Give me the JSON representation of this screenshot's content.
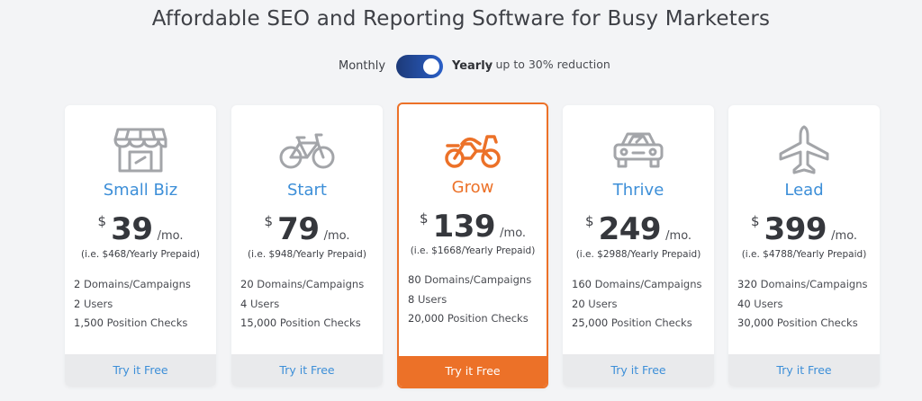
{
  "headline": "Affordable SEO and Reporting Software for Busy Marketers",
  "billing": {
    "monthly_label": "Monthly",
    "yearly_label": "Yearly",
    "reduction_note": "- up to 30% reduction",
    "selected": "yearly"
  },
  "colors": {
    "accent_blue": "#3d8fd8",
    "accent_orange": "#ec7128",
    "toggle": "#1d3a78"
  },
  "plans": [
    {
      "icon": "storefront-icon",
      "name": "Small Biz",
      "currency": "$",
      "price": "39",
      "per": "/mo.",
      "prepaid": "(i.e. $468/Yearly Prepaid)",
      "features": [
        {
          "count": "2",
          "label": " Domains/Campaigns"
        },
        {
          "count": "2",
          "label": " Users"
        },
        {
          "count": "1,500",
          "label": " Position Checks"
        }
      ],
      "cta": "Try it Free"
    },
    {
      "icon": "bicycle-icon",
      "name": "Start",
      "currency": "$",
      "price": "79",
      "per": "/mo.",
      "prepaid": "(i.e. $948/Yearly Prepaid)",
      "features": [
        {
          "count": "20",
          "label": " Domains/Campaigns"
        },
        {
          "count": "4",
          "label": " Users"
        },
        {
          "count": "15,000",
          "label": " Position Checks"
        }
      ],
      "cta": "Try it Free"
    },
    {
      "icon": "motorcycle-icon",
      "name": "Grow",
      "currency": "$",
      "price": "139",
      "per": "/mo.",
      "prepaid": "(i.e. $1668/Yearly Prepaid)",
      "features": [
        {
          "count": "80",
          "label": " Domains/Campaigns"
        },
        {
          "count": "8",
          "label": " Users"
        },
        {
          "count": "20,000",
          "label": " Position Checks"
        }
      ],
      "cta": "Try it Free",
      "featured": true
    },
    {
      "icon": "car-icon",
      "name": "Thrive",
      "currency": "$",
      "price": "249",
      "per": "/mo.",
      "prepaid": "(i.e. $2988/Yearly Prepaid)",
      "features": [
        {
          "count": "160",
          "label": " Domains/Campaigns"
        },
        {
          "count": "20",
          "label": " Users"
        },
        {
          "count": "25,000",
          "label": " Position Checks"
        }
      ],
      "cta": "Try it Free"
    },
    {
      "icon": "airplane-icon",
      "name": "Lead",
      "currency": "$",
      "price": "399",
      "per": "/mo.",
      "prepaid": "(i.e. $4788/Yearly Prepaid)",
      "features": [
        {
          "count": "320",
          "label": " Domains/Campaigns"
        },
        {
          "count": "40",
          "label": " Users"
        },
        {
          "count": "30,000",
          "label": " Position Checks"
        }
      ],
      "cta": "Try it Free"
    }
  ]
}
